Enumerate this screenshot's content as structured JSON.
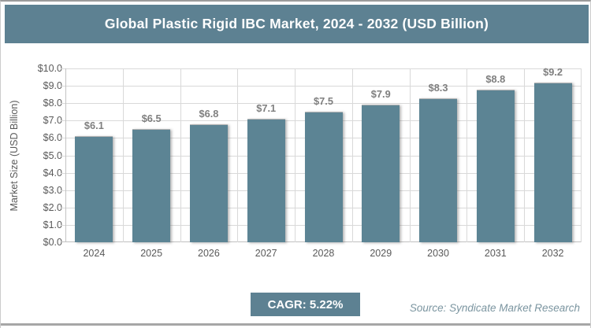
{
  "title": "Global Plastic Rigid IBC Market, 2024 - 2032 (USD Billion)",
  "chart_data": {
    "type": "bar",
    "title": "Global Plastic Rigid IBC Market, 2024 - 2032 (USD Billion)",
    "categories": [
      "2024",
      "2025",
      "2026",
      "2027",
      "2028",
      "2029",
      "2030",
      "2031",
      "2032"
    ],
    "values": [
      6.1,
      6.5,
      6.8,
      7.1,
      7.5,
      7.9,
      8.3,
      8.8,
      9.2
    ],
    "bar_labels": [
      "$6.1",
      "$6.5",
      "$6.8",
      "$7.1",
      "$7.5",
      "$7.9",
      "$8.3",
      "$8.8",
      "$9.2"
    ],
    "xlabel": "",
    "ylabel": "Market Size (USD Billion)",
    "ylim": [
      0,
      10
    ],
    "ytick_step": 1,
    "ytick_labels": [
      "$0.0",
      "$1.0",
      "$2.0",
      "$3.0",
      "$4.0",
      "$5.0",
      "$6.0",
      "$7.0",
      "$8.0",
      "$9.0",
      "$10.0"
    ],
    "grid": true,
    "legend": "none",
    "bar_color": "#5c8494"
  },
  "footer": {
    "cagr_label": "CAGR: 5.22%",
    "source": "Source: Syndicate Market Research"
  },
  "colors": {
    "accent_teal": "#5d8192",
    "bar": "#5c8494",
    "data_label": "#7f7f7f",
    "axis_text": "#595959",
    "gridline": "#d9d9d9",
    "source_text": "#7b95a0",
    "bottom_rule": "#a6a6a6"
  }
}
